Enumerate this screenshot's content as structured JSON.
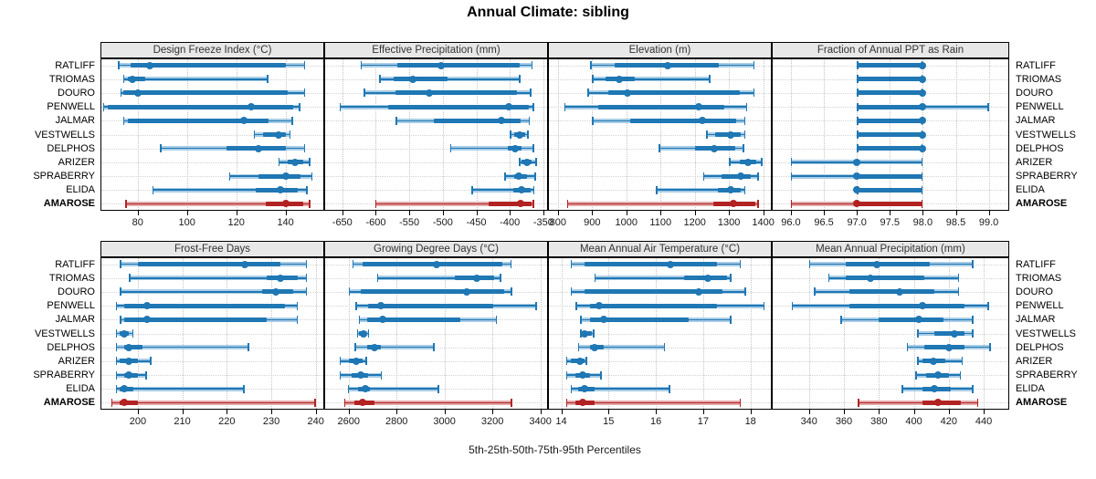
{
  "title": "Annual Climate: sibling",
  "footer": "5th-25th-50th-75th-95th Percentiles",
  "percentile_labels": [
    "5th",
    "25th",
    "50th",
    "75th",
    "95th"
  ],
  "rows": [
    "RATLIFF",
    "TRIOMAS",
    "DOURO",
    "PENWELL",
    "JALMAR",
    "VESTWELLS",
    "DELPHOS",
    "ARIZER",
    "SPRABERRY",
    "ELIDA",
    "AMAROSE"
  ],
  "highlight_row": "AMAROSE",
  "colors": {
    "series_blue": "#1f77b4",
    "series_blue_light": "#a9cde6",
    "highlight_red": "#b22222",
    "highlight_red_light": "#e2a9a9",
    "strip_bg": "#e8e8e8",
    "grid": "#c4c4c4"
  },
  "chart_data": [
    {
      "type": "dot_whisker",
      "title": "Design Freeze Index (°C)",
      "xlim": [
        64.9,
        155.7
      ],
      "tick_values": [
        80,
        100,
        120,
        140
      ],
      "tick_labels": [
        "80",
        "100",
        "120",
        "140"
      ],
      "values": [
        [
          72,
          77,
          85,
          140,
          148
        ],
        [
          74,
          76,
          78,
          83,
          133
        ],
        [
          73,
          74,
          80,
          141,
          148
        ],
        [
          66,
          68,
          126,
          143,
          146
        ],
        [
          74,
          76,
          123,
          133,
          143
        ],
        [
          127,
          131,
          137,
          140,
          142
        ],
        [
          89,
          116,
          129,
          140,
          148
        ],
        [
          137,
          141,
          144,
          147,
          150
        ],
        [
          117,
          129,
          140,
          146,
          151
        ],
        [
          86,
          128,
          138,
          145,
          149
        ],
        [
          75,
          132,
          140,
          147,
          150
        ]
      ]
    },
    {
      "type": "dot_whisker",
      "title": "Effective Precipitation (mm)",
      "xlim": [
        -677,
        -343
      ],
      "tick_values": [
        -650,
        -600,
        -550,
        -500,
        -450,
        -400,
        -350
      ],
      "tick_labels": [
        "-650",
        "-600",
        "-550",
        "-500",
        "-450",
        "-400",
        "-350"
      ],
      "values": [
        [
          -623,
          -568,
          -502,
          -385,
          -366
        ],
        [
          -595,
          -573,
          -545,
          -493,
          -384
        ],
        [
          -618,
          -570,
          -520,
          -390,
          -368
        ],
        [
          -654,
          -582,
          -401,
          -372,
          -364
        ],
        [
          -570,
          -514,
          -413,
          -384,
          -370
        ],
        [
          -400,
          -393,
          -385,
          -377,
          -372
        ],
        [
          -489,
          -403,
          -392,
          -382,
          -364
        ],
        [
          -386,
          -382,
          -374,
          -367,
          -360
        ],
        [
          -408,
          -393,
          -386,
          -375,
          -361
        ],
        [
          -457,
          -395,
          -383,
          -369,
          -363
        ],
        [
          -601,
          -432,
          -384,
          -368,
          -364
        ]
      ]
    },
    {
      "type": "dot_whisker",
      "title": "Elevation (m)",
      "xlim": [
        771,
        1425
      ],
      "tick_values": [
        800,
        900,
        1000,
        1100,
        1200,
        1300,
        1400
      ],
      "tick_labels": [
        "800",
        "900",
        "1000",
        "1100",
        "1200",
        "1300",
        "1400"
      ],
      "values": [
        [
          895,
          965,
          1120,
          1270,
          1375
        ],
        [
          900,
          939,
          979,
          1024,
          1246
        ],
        [
          886,
          948,
          1004,
          1331,
          1375
        ],
        [
          819,
          917,
          1211,
          1286,
          1353
        ],
        [
          900,
          1011,
          1222,
          1322,
          1348
        ],
        [
          1233,
          1259,
          1304,
          1335,
          1348
        ],
        [
          1095,
          1202,
          1258,
          1317,
          1344
        ],
        [
          1300,
          1332,
          1356,
          1379,
          1397
        ],
        [
          1224,
          1277,
          1335,
          1364,
          1387
        ],
        [
          1086,
          1268,
          1304,
          1335,
          1348
        ],
        [
          826,
          1253,
          1313,
          1377,
          1387
        ]
      ]
    },
    {
      "type": "dot_whisker",
      "title": "Fraction of Annual PPT as Rain",
      "xlim": [
        95.71,
        99.31
      ],
      "tick_values": [
        96.0,
        96.5,
        97.0,
        97.5,
        98.0,
        98.5,
        99.0
      ],
      "tick_labels": [
        "96.0",
        "96.5",
        "97.0",
        "97.5",
        "98.0",
        "98.5",
        "99.0"
      ],
      "values": [
        [
          97,
          97,
          98,
          98,
          98
        ],
        [
          97,
          97,
          98,
          98,
          98
        ],
        [
          97,
          97,
          98,
          98,
          98
        ],
        [
          97,
          97,
          98,
          98,
          99
        ],
        [
          97,
          97,
          98,
          98,
          98
        ],
        [
          97,
          97,
          98,
          98,
          98
        ],
        [
          97,
          97,
          98,
          98,
          98
        ],
        [
          96,
          97,
          97,
          97,
          98
        ],
        [
          96,
          97,
          97,
          98,
          98
        ],
        [
          97,
          97,
          97,
          98,
          98
        ],
        [
          96,
          97,
          97,
          98,
          98
        ]
      ]
    },
    {
      "type": "dot_whisker",
      "title": "Frost-Free Days",
      "xlim": [
        191.6,
        241.9
      ],
      "tick_values": [
        200,
        210,
        220,
        230,
        240
      ],
      "tick_labels": [
        "200",
        "210",
        "220",
        "230",
        "240"
      ],
      "values": [
        [
          196,
          200,
          224,
          232,
          238
        ],
        [
          198,
          229,
          232,
          236,
          238
        ],
        [
          196,
          228,
          231,
          235,
          238
        ],
        [
          195,
          197,
          202,
          233,
          236
        ],
        [
          196,
          197,
          202,
          229,
          236
        ],
        [
          195,
          196,
          197,
          198,
          199
        ],
        [
          195,
          197,
          198,
          201,
          225
        ],
        [
          195,
          196,
          198,
          200,
          203
        ],
        [
          195,
          197,
          198,
          200,
          202
        ],
        [
          195,
          196,
          197,
          199,
          224
        ],
        [
          194,
          196,
          197,
          200,
          240
        ]
      ]
    },
    {
      "type": "dot_whisker",
      "title": "Growing Degree Days (°C)",
      "xlim": [
        2498,
        3432
      ],
      "tick_values": [
        2600,
        2800,
        3000,
        3200,
        3400
      ],
      "tick_labels": [
        "2600",
        "2800",
        "3000",
        "3200",
        "3400"
      ],
      "values": [
        [
          2615,
          2660,
          2965,
          3240,
          3280
        ],
        [
          2718,
          3044,
          3136,
          3206,
          3237
        ],
        [
          2600,
          2650,
          3093,
          3250,
          3282
        ],
        [
          2629,
          2680,
          2733,
          3203,
          3385
        ],
        [
          2642,
          2676,
          2742,
          3066,
          3220
        ],
        [
          2634,
          2643,
          2661,
          2672,
          2686
        ],
        [
          2625,
          2676,
          2708,
          2733,
          2959
        ],
        [
          2562,
          2600,
          2632,
          2657,
          2676
        ],
        [
          2562,
          2613,
          2651,
          2682,
          2740
        ],
        [
          2596,
          2639,
          2670,
          2690,
          2977
        ],
        [
          2581,
          2622,
          2660,
          2708,
          3282
        ]
      ]
    },
    {
      "type": "dot_whisker",
      "title": "Mean Annual Air Temperature (°C)",
      "xlim": [
        13.72,
        18.45
      ],
      "tick_values": [
        14,
        15,
        16,
        17,
        18
      ],
      "tick_labels": [
        "14",
        "15",
        "16",
        "17",
        "18"
      ],
      "values": [
        [
          14.2,
          14.5,
          16.3,
          17.3,
          17.8
        ],
        [
          14.7,
          16.6,
          17.1,
          17.5,
          17.6
        ],
        [
          14.2,
          14.5,
          16.9,
          17.4,
          17.9
        ],
        [
          14.3,
          14.6,
          14.8,
          17.3,
          18.3
        ],
        [
          14.4,
          14.6,
          14.9,
          16.7,
          17.6
        ],
        [
          14.4,
          14.45,
          14.5,
          14.65,
          14.7
        ],
        [
          14.35,
          14.6,
          14.7,
          14.9,
          16.2
        ],
        [
          14.1,
          14.2,
          14.4,
          14.5,
          14.55
        ],
        [
          14.1,
          14.3,
          14.45,
          14.6,
          14.85
        ],
        [
          14.2,
          14.35,
          14.5,
          14.7,
          16.3
        ],
        [
          14.1,
          14.3,
          14.45,
          14.7,
          17.8
        ]
      ]
    },
    {
      "type": "dot_whisker",
      "title": "Mean Annual Precipitation (mm)",
      "xlim": [
        318.7,
        454.6
      ],
      "tick_values": [
        340,
        360,
        380,
        400,
        420,
        440
      ],
      "tick_labels": [
        "340",
        "360",
        "380",
        "400",
        "420",
        "440"
      ],
      "values": [
        [
          340,
          361,
          379,
          409,
          434
        ],
        [
          351,
          361,
          375,
          406,
          426
        ],
        [
          343,
          363,
          392,
          412,
          426
        ],
        [
          330,
          363,
          405,
          429,
          443
        ],
        [
          358,
          380,
          403,
          417,
          434
        ],
        [
          402,
          412,
          423,
          429,
          434
        ],
        [
          396,
          406,
          420,
          429,
          444
        ],
        [
          402,
          405,
          411,
          418,
          428
        ],
        [
          401,
          407,
          414,
          420,
          427
        ],
        [
          393,
          405,
          412,
          421,
          434
        ],
        [
          368,
          405,
          414,
          427,
          437
        ]
      ]
    }
  ]
}
